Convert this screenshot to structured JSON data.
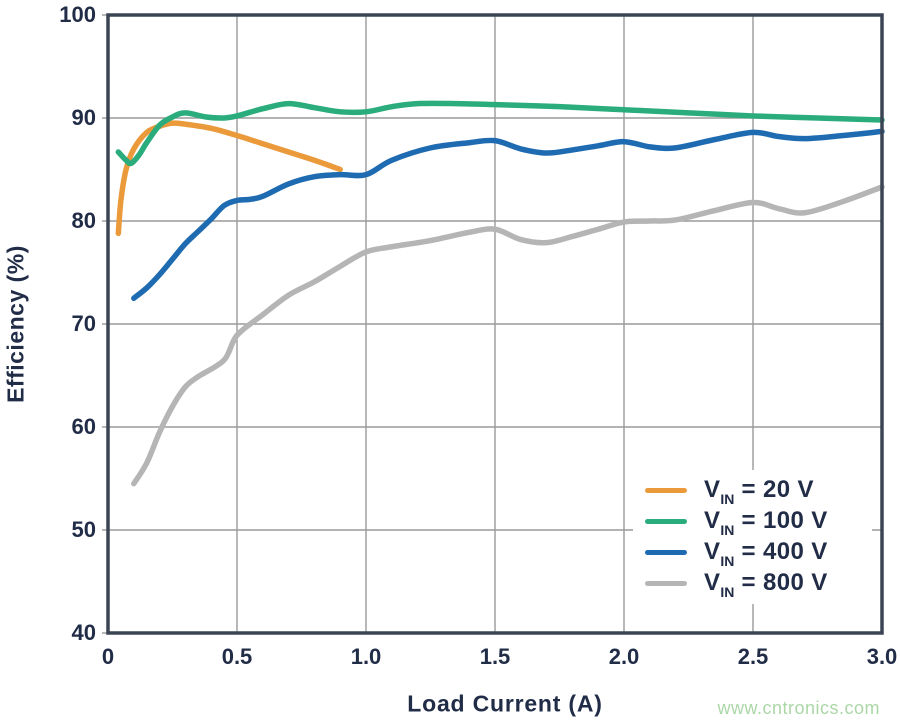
{
  "watermark": {
    "text": "www.cntronics.com",
    "color": "#abd7a7"
  },
  "chart_data": {
    "type": "line",
    "title": "",
    "xlabel": "Load Current (A)",
    "ylabel": "Efficiency (%)",
    "xlim": [
      0,
      3.0
    ],
    "ylim": [
      40,
      100
    ],
    "xticks": [
      0,
      0.5,
      1.0,
      1.5,
      2.0,
      2.5,
      3.0
    ],
    "xtick_labels": [
      "0",
      "0.5",
      "1.0",
      "1.5",
      "2.0",
      "2.5",
      "3.0"
    ],
    "yticks": [
      100,
      90,
      80,
      70,
      60,
      50,
      40
    ],
    "ytick_labels": [
      "100",
      "90",
      "80",
      "70",
      "60",
      "50",
      "40"
    ],
    "grid": true,
    "grid_color": "#9a9a9a",
    "axis_color": "#3b4454",
    "text_color": "#212c47",
    "legend_position": "lower right",
    "series": [
      {
        "name": "VIN = 20 V",
        "name_prefix": "V",
        "name_sub": "IN",
        "name_rest": " = 20 V",
        "color": "#EB9A3B",
        "x": [
          0.04,
          0.05,
          0.07,
          0.1,
          0.15,
          0.2,
          0.25,
          0.3,
          0.4,
          0.5,
          0.6,
          0.7,
          0.8,
          0.9
        ],
        "y": [
          78.8,
          82.0,
          85.0,
          87.0,
          88.6,
          89.2,
          89.5,
          89.4,
          89.0,
          88.3,
          87.5,
          86.7,
          85.9,
          85.0
        ]
      },
      {
        "name": "VIN = 100 V",
        "name_prefix": "V",
        "name_sub": "IN",
        "name_rest": " = 100 V",
        "color": "#2BAC7D",
        "x": [
          0.04,
          0.07,
          0.09,
          0.12,
          0.15,
          0.2,
          0.25,
          0.3,
          0.38,
          0.45,
          0.5,
          0.6,
          0.7,
          0.8,
          0.9,
          1.0,
          1.1,
          1.2,
          1.35,
          1.5,
          1.75,
          2.0,
          2.25,
          2.5,
          2.75,
          3.0
        ],
        "y": [
          86.7,
          85.9,
          85.6,
          86.4,
          87.6,
          89.3,
          90.1,
          90.5,
          90.1,
          90.0,
          90.2,
          90.9,
          91.4,
          91.0,
          90.6,
          90.6,
          91.1,
          91.4,
          91.4,
          91.3,
          91.1,
          90.8,
          90.5,
          90.2,
          90.0,
          89.8
        ]
      },
      {
        "name": "VIN = 400 V",
        "name_prefix": "V",
        "name_sub": "IN",
        "name_rest": " = 400 V",
        "color": "#1E6BB2",
        "x": [
          0.1,
          0.15,
          0.2,
          0.25,
          0.3,
          0.35,
          0.4,
          0.45,
          0.5,
          0.55,
          0.6,
          0.7,
          0.8,
          0.9,
          1.0,
          1.1,
          1.25,
          1.4,
          1.5,
          1.6,
          1.7,
          1.8,
          1.9,
          2.0,
          2.1,
          2.2,
          2.35,
          2.5,
          2.6,
          2.7,
          2.85,
          3.0
        ],
        "y": [
          72.5,
          73.5,
          74.8,
          76.3,
          77.8,
          79.0,
          80.2,
          81.5,
          82.0,
          82.1,
          82.4,
          83.6,
          84.3,
          84.5,
          84.5,
          85.9,
          87.1,
          87.6,
          87.8,
          87.0,
          86.6,
          86.9,
          87.3,
          87.7,
          87.2,
          87.1,
          87.9,
          88.6,
          88.2,
          88.0,
          88.3,
          88.7
        ]
      },
      {
        "name": "VIN = 800 V",
        "name_prefix": "V",
        "name_sub": "IN",
        "name_rest": " = 800 V",
        "color": "#B5B5B6",
        "x": [
          0.1,
          0.15,
          0.2,
          0.25,
          0.3,
          0.35,
          0.45,
          0.5,
          0.6,
          0.7,
          0.8,
          0.9,
          1.0,
          1.1,
          1.25,
          1.4,
          1.5,
          1.6,
          1.7,
          1.8,
          1.9,
          2.0,
          2.1,
          2.2,
          2.35,
          2.5,
          2.6,
          2.7,
          2.85,
          3.0
        ],
        "y": [
          54.5,
          56.5,
          59.5,
          62.0,
          63.9,
          64.9,
          66.5,
          68.9,
          70.9,
          72.8,
          74.1,
          75.6,
          77.0,
          77.5,
          78.1,
          78.9,
          79.2,
          78.2,
          77.9,
          78.5,
          79.2,
          79.9,
          80.0,
          80.1,
          81.0,
          81.8,
          81.2,
          80.8,
          81.9,
          83.3
        ]
      }
    ]
  }
}
